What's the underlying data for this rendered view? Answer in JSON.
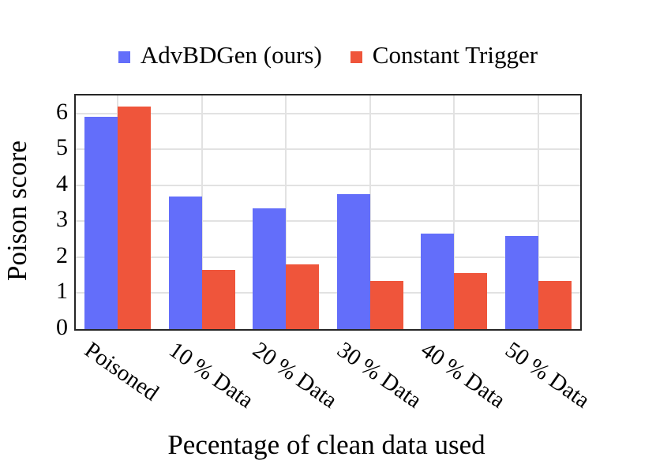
{
  "chart_data": {
    "type": "bar",
    "title": "",
    "categories": [
      "Poisoned",
      "10 % Data",
      "20 % Data",
      "30 % Data",
      "40 % Data",
      "50 % Data"
    ],
    "series": [
      {
        "name": "AdvBDGen (ours)",
        "color": "#636EFA",
        "values": [
          5.9,
          3.7,
          3.35,
          3.75,
          2.65,
          2.6
        ]
      },
      {
        "name": "Constant Trigger",
        "color": "#EF553B",
        "values": [
          6.2,
          1.65,
          1.8,
          1.35,
          1.55,
          1.35
        ]
      }
    ],
    "xlabel": "Pecentage of clean data used",
    "ylabel": "Poison score",
    "ylim": [
      0,
      6.5
    ],
    "yticks": [
      0,
      1,
      2,
      3,
      4,
      5,
      6
    ],
    "grid": true,
    "legend_position": "top",
    "colors": {
      "background": "#ffffff",
      "grid": "#e2e2e2",
      "frame": "#262626",
      "text": "#000000"
    }
  }
}
